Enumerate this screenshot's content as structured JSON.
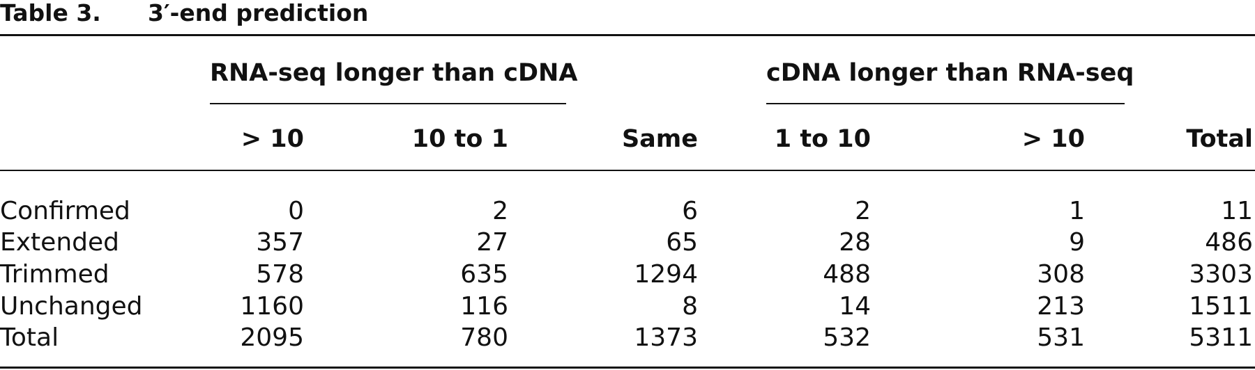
{
  "title": {
    "label": "Table 3.",
    "text": "3′-end prediction"
  },
  "table": {
    "groups": [
      "RNA-seq longer than cDNA",
      "cDNA longer than RNA-seq"
    ],
    "columns": [
      "> 10",
      "10 to 1",
      "Same",
      "1 to 10",
      "> 10",
      "Total"
    ],
    "rows": [
      {
        "label": "Confirmed",
        "values": [
          0,
          2,
          6,
          2,
          1,
          11
        ]
      },
      {
        "label": "Extended",
        "values": [
          357,
          27,
          65,
          28,
          9,
          486
        ]
      },
      {
        "label": "Trimmed",
        "values": [
          578,
          635,
          1294,
          488,
          308,
          3303
        ]
      },
      {
        "label": "Unchanged",
        "values": [
          1160,
          116,
          8,
          14,
          213,
          1511
        ]
      },
      {
        "label": "Total",
        "values": [
          2095,
          780,
          1373,
          532,
          531,
          5311
        ]
      }
    ]
  }
}
